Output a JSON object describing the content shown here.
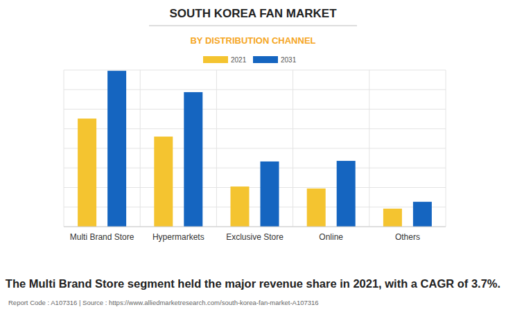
{
  "chart_data": {
    "type": "bar",
    "title": "SOUTH KOREA FAN MARKET",
    "subtitle": "BY DISTRIBUTION CHANNEL",
    "categories": [
      "Multi Brand Store",
      "Hypermarkets",
      "Exclusive Store",
      "Online",
      "Others"
    ],
    "series": [
      {
        "name": "2021",
        "color": "#f4c430",
        "values": [
          5.52,
          4.6,
          2.05,
          1.95,
          0.92
        ]
      },
      {
        "name": "2031",
        "color": "#1565c0",
        "values": [
          7.96,
          6.87,
          3.33,
          3.36,
          1.27
        ]
      }
    ],
    "ylim": [
      0,
      8
    ],
    "yticks": [
      0,
      1,
      2,
      3,
      4,
      5,
      6,
      7,
      8
    ],
    "grid": true,
    "tick_labels": "x",
    "legend": "top",
    "annotations": [
      "The Multi Brand Store segment held the major revenue share in 2021, with a CAGR of 3.7%.",
      "Report Code : A107316 | Source : https://www.alliedmarketresearch.com/south-korea-fan-market-A107316"
    ]
  }
}
